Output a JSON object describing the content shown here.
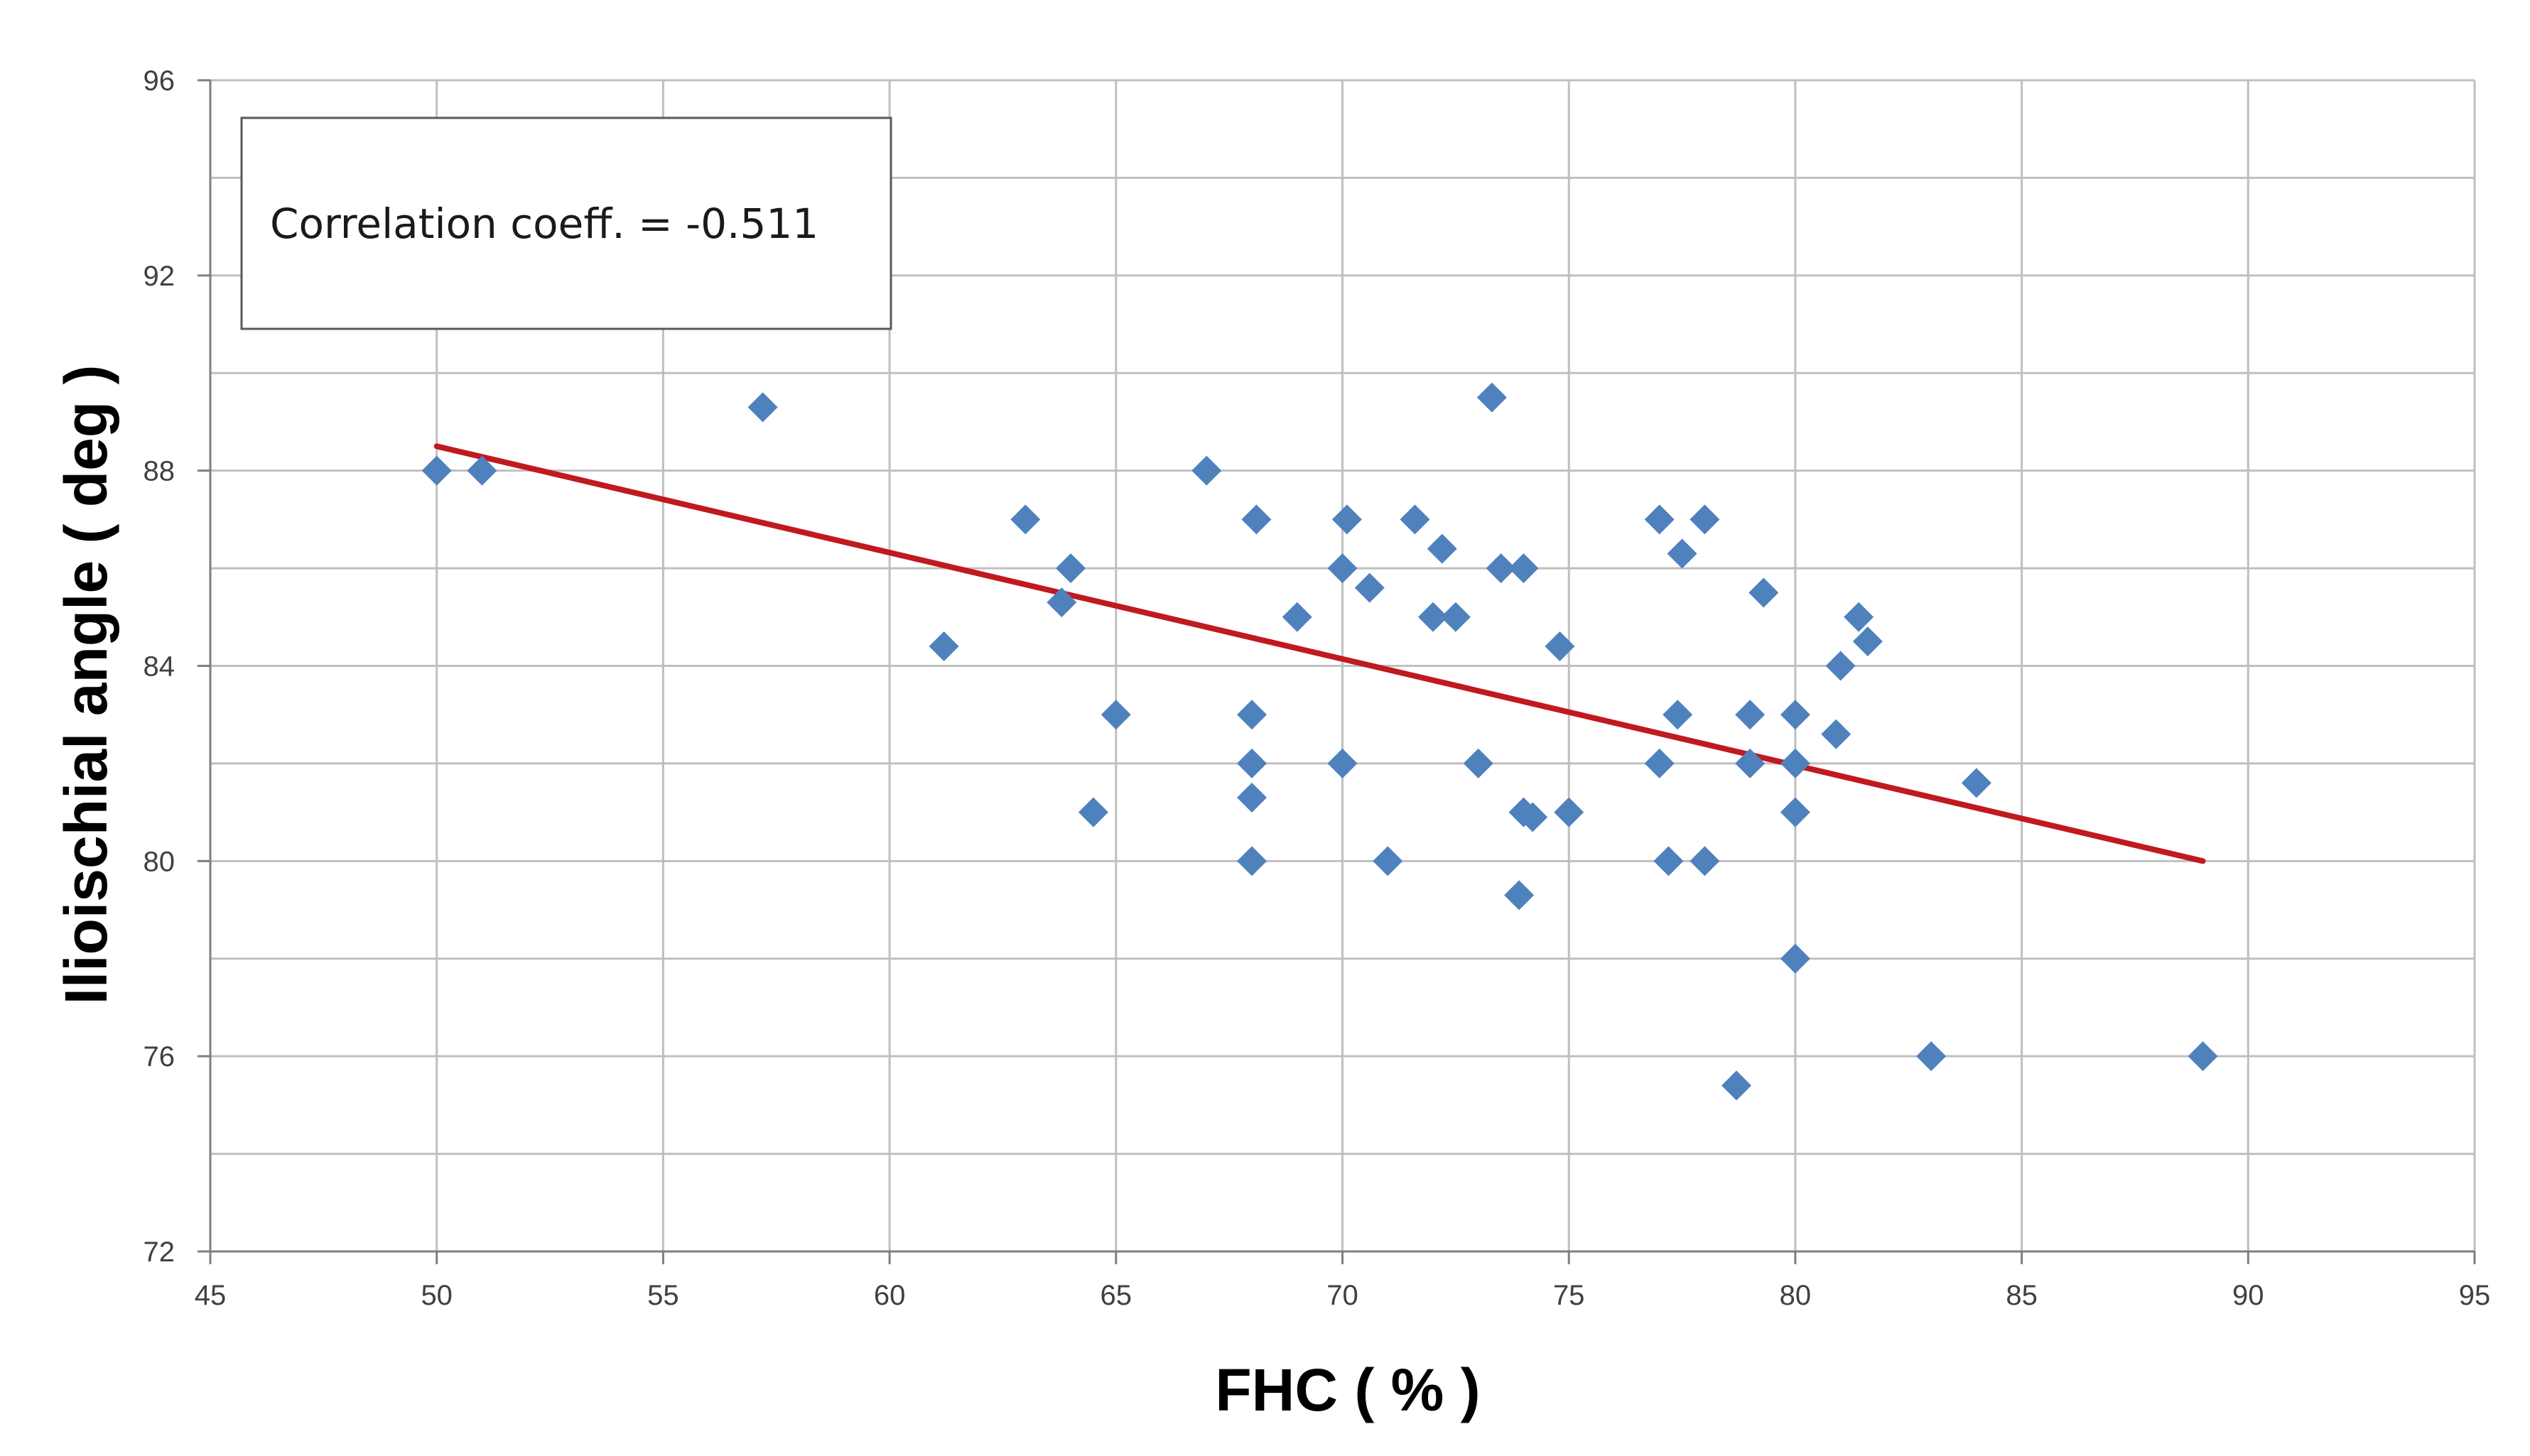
{
  "chart_data": {
    "type": "scatter",
    "title": "",
    "xlabel": "FHC ( % )",
    "ylabel": "Ilioischial angle ( deg )",
    "xlim": [
      45,
      95
    ],
    "ylim": [
      72,
      96
    ],
    "xticks": [
      45,
      50,
      55,
      60,
      65,
      70,
      75,
      80,
      85,
      90,
      95
    ],
    "yticks": [
      72,
      76,
      80,
      84,
      88,
      92,
      96
    ],
    "grid": true,
    "annotation": "Correlation coeff. = -0.511",
    "colors": {
      "points": "#4F81BD",
      "trendline": "#C0191F",
      "gridline": "#BFBFBF"
    },
    "series": [
      {
        "marker": "diamond",
        "x": [
          50,
          51,
          57.2,
          61.2,
          63,
          63.8,
          64,
          64.5,
          65,
          67,
          68,
          68,
          68,
          68,
          68.1,
          69,
          70,
          70,
          70.1,
          70.6,
          71,
          71.6,
          72,
          72.2,
          72.5,
          73,
          73.3,
          73.5,
          73.9,
          74,
          74,
          74.2,
          74.8,
          75,
          77,
          77,
          77.2,
          77.4,
          77.5,
          78,
          78,
          78.7,
          79,
          79,
          79.3,
          80,
          80,
          80,
          80,
          80.9,
          81,
          81.4,
          81.6,
          83,
          84,
          89
        ],
        "y": [
          88,
          88,
          89.3,
          84.4,
          87,
          85.3,
          86,
          81,
          83,
          88,
          83,
          82,
          81.3,
          80,
          87,
          85,
          86,
          82,
          87,
          85.6,
          80,
          87,
          85,
          86.4,
          85,
          82,
          89.5,
          86,
          79.3,
          81,
          86,
          80.9,
          84.4,
          81,
          87,
          82,
          80,
          83,
          86.3,
          87,
          80,
          75.4,
          83,
          82,
          85.5,
          83,
          82,
          81,
          78,
          82.6,
          84,
          85,
          84.5,
          76,
          81.6,
          76
        ]
      }
    ],
    "trendline": {
      "x": [
        50,
        89
      ],
      "y": [
        88.5,
        80
      ]
    }
  }
}
